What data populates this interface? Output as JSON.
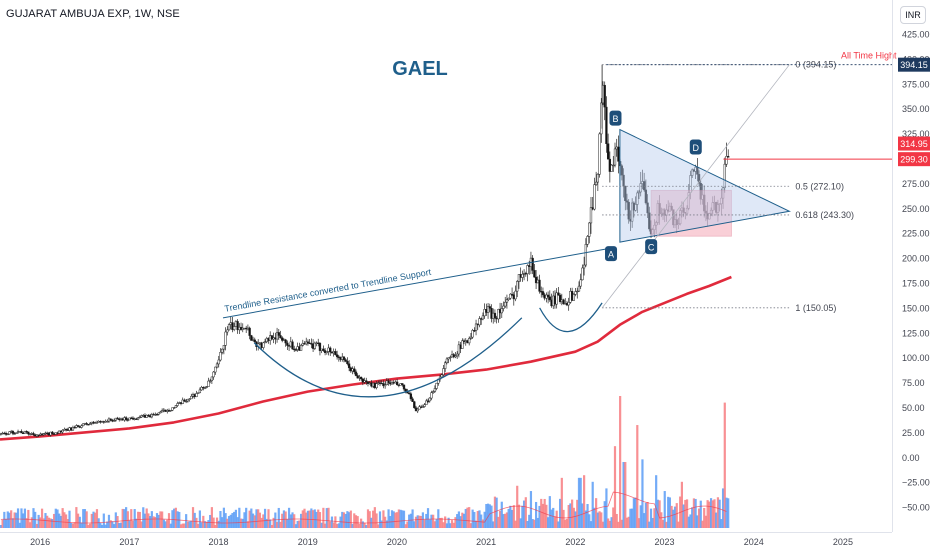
{
  "header": {
    "symbol_line": "GUJARAT AMBUJA EXP, 1W, NSE"
  },
  "currency_button": "INR",
  "chart_data": {
    "type": "candlestick",
    "title": "GAEL",
    "y_axis": {
      "range": [
        -75,
        437
      ],
      "ticks": [
        "425.00",
        "400.00",
        "375.00",
        "350.00",
        "325.00",
        "300.00",
        "275.00",
        "250.00",
        "225.00",
        "200.00",
        "175.00",
        "150.00",
        "125.00",
        "100.00",
        "75.00",
        "50.00",
        "25.00",
        "0.00",
        "−25.00",
        "−50.00"
      ],
      "tick_values": [
        425,
        400,
        375,
        350,
        325,
        300,
        275,
        250,
        225,
        200,
        175,
        150,
        125,
        100,
        75,
        50,
        25,
        0,
        -25,
        -50
      ]
    },
    "x_axis": {
      "ticks": [
        "2016",
        "2017",
        "2018",
        "2019",
        "2020",
        "2021",
        "2022",
        "2023",
        "2024",
        "2025"
      ],
      "tick_values": [
        2016,
        2017,
        2018,
        2019,
        2020,
        2021,
        2022,
        2023,
        2024,
        2025
      ],
      "range": [
        2015.55,
        2025.55
      ]
    },
    "price_badges": [
      {
        "label": "394.15",
        "value": 394.15,
        "color": "#1e3a5f"
      },
      {
        "label": "314.95",
        "value": 314.95,
        "color": "#f23645"
      },
      {
        "label": "299.30",
        "value": 299.3,
        "color": "#f23645"
      }
    ],
    "fib_levels": [
      {
        "label": "0 (394.15)",
        "value": 394.15
      },
      {
        "label": "0.5 (272.10)",
        "value": 272.1
      },
      {
        "label": "0.618 (243.30)",
        "value": 243.3
      },
      {
        "label": "1 (150.05)",
        "value": 150.05
      }
    ],
    "annotations": {
      "ath": "All Time Hight",
      "trendline_text": "Trendline Resistance converted to Trendline Support",
      "points": [
        {
          "label": "A",
          "x": 2022.4,
          "y": 204
        },
        {
          "label": "B",
          "x": 2022.45,
          "y": 340
        },
        {
          "label": "C",
          "x": 2022.85,
          "y": 211
        },
        {
          "label": "D",
          "x": 2023.35,
          "y": 311
        }
      ]
    },
    "horizontal_line": {
      "value": 299.3,
      "x_from": 2023.66
    },
    "trendline": {
      "x0": 2018.05,
      "y0": 140,
      "x1": 2022.4,
      "y1": 210
    },
    "triangle": {
      "top": [
        2022.5,
        329
      ],
      "bottom": [
        2022.5,
        216
      ],
      "apex": [
        2024.4,
        247
      ]
    },
    "rectangle": {
      "x0": 2022.85,
      "x1": 2023.75,
      "y0": 222,
      "y1": 268
    },
    "moving_average_200": {
      "x": [
        2015.55,
        2016.0,
        2016.5,
        2017.0,
        2017.5,
        2018.0,
        2018.5,
        2019.0,
        2019.5,
        2020.0,
        2020.5,
        2021.0,
        2021.5,
        2022.0,
        2022.25,
        2022.5,
        2022.75,
        2023.0,
        2023.25,
        2023.5,
        2023.75
      ],
      "y": [
        18,
        21,
        25,
        29,
        35,
        44,
        56,
        66,
        73,
        79,
        83,
        88,
        96,
        106,
        116,
        133,
        146,
        155,
        164,
        172,
        181
      ]
    },
    "price_path": {
      "x": [
        2015.55,
        2015.75,
        2016.0,
        2016.25,
        2016.5,
        2016.75,
        2017.0,
        2017.25,
        2017.5,
        2017.75,
        2017.9,
        2018.0,
        2018.1,
        2018.2,
        2018.3,
        2018.4,
        2018.5,
        2018.6,
        2018.7,
        2018.85,
        2019.0,
        2019.15,
        2019.3,
        2019.45,
        2019.6,
        2019.75,
        2019.9,
        2020.05,
        2020.15,
        2020.2,
        2020.3,
        2020.45,
        2020.55,
        2020.7,
        2020.85,
        2021.0,
        2021.1,
        2021.2,
        2021.3,
        2021.4,
        2021.5,
        2021.6,
        2021.7,
        2021.8,
        2021.9,
        2022.0,
        2022.05,
        2022.1,
        2022.15,
        2022.2,
        2022.25,
        2022.3,
        2022.35,
        2022.4,
        2022.45,
        2022.5,
        2022.55,
        2022.6,
        2022.65,
        2022.7,
        2022.75,
        2022.8,
        2022.85,
        2022.9,
        2022.95,
        2023.0,
        2023.05,
        2023.1,
        2023.15,
        2023.2,
        2023.25,
        2023.3,
        2023.35,
        2023.4,
        2023.45,
        2023.5,
        2023.55,
        2023.6,
        2023.65,
        2023.7
      ],
      "y": [
        23,
        26,
        22,
        26,
        33,
        37,
        39,
        42,
        50,
        64,
        75,
        95,
        130,
        132,
        133,
        115,
        112,
        123,
        120,
        110,
        113,
        110,
        105,
        92,
        77,
        72,
        75,
        72,
        60,
        48,
        50,
        75,
        95,
        110,
        125,
        148,
        142,
        152,
        162,
        188,
        195,
        170,
        155,
        160,
        158,
        165,
        175,
        192,
        240,
        260,
        290,
        375,
        320,
        280,
        310,
        290,
        260,
        240,
        250,
        270,
        270,
        245,
        230,
        240,
        255,
        240,
        250,
        240,
        236,
        245,
        245,
        280,
        295,
        260,
        250,
        245,
        255,
        250,
        270,
        310
      ]
    },
    "volume": {
      "x": [
        2021.35,
        2021.5,
        2021.65,
        2021.85,
        2022.05,
        2022.1,
        2022.2,
        2022.35,
        2022.45,
        2022.5,
        2022.55,
        2022.7,
        2022.75,
        2022.9,
        2023.0,
        2023.2,
        2023.35,
        2023.5,
        2023.65,
        2023.68
      ],
      "rel": [
        0.32,
        0.28,
        0.22,
        0.38,
        0.38,
        0.4,
        0.35,
        0.3,
        0.62,
        1.0,
        0.5,
        0.78,
        0.52,
        0.4,
        0.28,
        0.35,
        0.22,
        0.2,
        0.3,
        0.95
      ]
    }
  }
}
